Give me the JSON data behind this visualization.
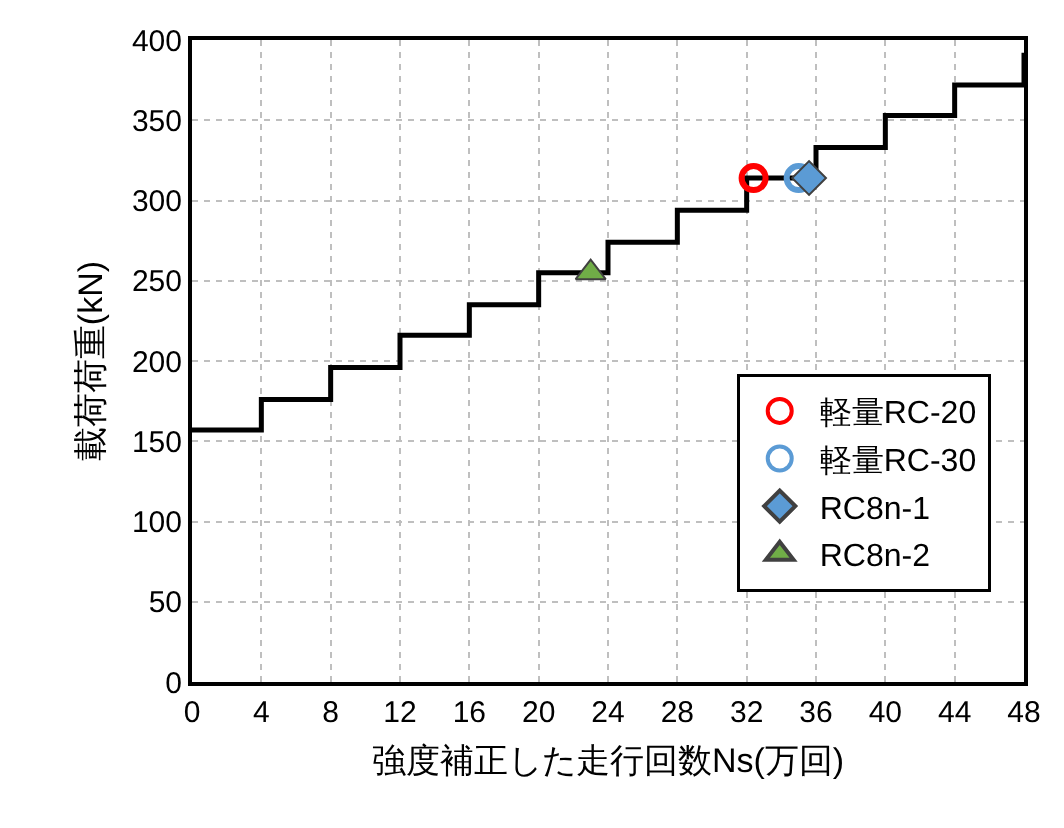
{
  "chart_data": {
    "type": "scatter",
    "xlabel": "強度補正した走行回数Ns(万回)",
    "ylabel": "載荷荷重(kN)",
    "xlim": [
      0,
      48
    ],
    "xticks": [
      0,
      4,
      8,
      12,
      16,
      20,
      24,
      28,
      32,
      36,
      40,
      44,
      48
    ],
    "ylim": [
      0,
      400
    ],
    "yticks": [
      0,
      50,
      100,
      150,
      200,
      250,
      300,
      350,
      400
    ],
    "grid": true,
    "legend": "bottom right",
    "series": [
      {
        "type": "step",
        "color": "#000000",
        "x": [
          0,
          4,
          8,
          12,
          16,
          20,
          24,
          28,
          32,
          36,
          40,
          44,
          48
        ],
        "values": [
          157,
          176,
          196,
          216,
          235,
          255,
          274,
          294,
          314,
          333,
          353,
          372,
          392
        ]
      },
      {
        "name": "軽量RC-20",
        "color": "#ff0000",
        "marker": "circle",
        "x": [
          32.4
        ],
        "values": [
          314
        ]
      },
      {
        "name": "軽量RC-30",
        "color": "#5b9bd5",
        "marker": "circle",
        "x": [
          35.0
        ],
        "values": [
          314
        ]
      },
      {
        "name": "RC8n-1",
        "color": "#5b9bd5",
        "marker": "diamond",
        "x": [
          35.6
        ],
        "values": [
          314
        ]
      },
      {
        "name": "RC8n-2",
        "color": "#70ad47",
        "marker": "triangle",
        "x": [
          23
        ],
        "values": [
          255
        ]
      }
    ]
  }
}
